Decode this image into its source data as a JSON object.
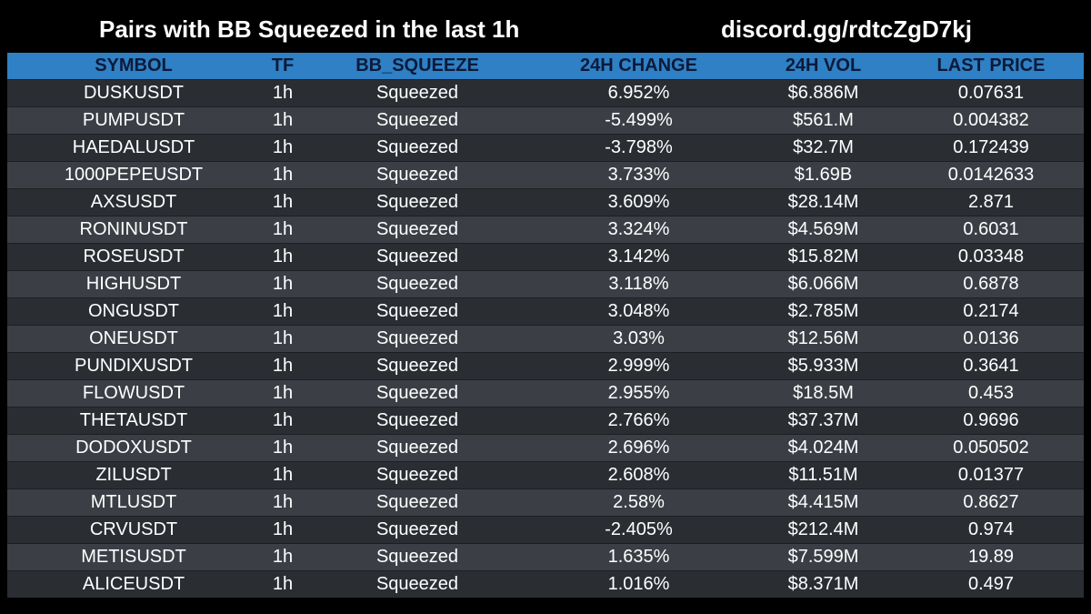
{
  "header": {
    "title": "Pairs with BB Squeezed in the last 1h",
    "discord": "discord.gg/rdtcZgD7kj"
  },
  "table": {
    "columns": [
      "SYMBOL",
      "TF",
      "BB_SQUEEZE",
      "24H CHANGE",
      "24H VOL",
      "LAST PRICE"
    ],
    "rows": [
      [
        "DUSKUSDT",
        "1h",
        "Squeezed",
        "6.952%",
        "$6.886M",
        "0.07631"
      ],
      [
        "PUMPUSDT",
        "1h",
        "Squeezed",
        "-5.499%",
        "$561.M",
        "0.004382"
      ],
      [
        "HAEDALUSDT",
        "1h",
        "Squeezed",
        "-3.798%",
        "$32.7M",
        "0.172439"
      ],
      [
        "1000PEPEUSDT",
        "1h",
        "Squeezed",
        "3.733%",
        "$1.69B",
        "0.0142633"
      ],
      [
        "AXSUSDT",
        "1h",
        "Squeezed",
        "3.609%",
        "$28.14M",
        "2.871"
      ],
      [
        "RONINUSDT",
        "1h",
        "Squeezed",
        "3.324%",
        "$4.569M",
        "0.6031"
      ],
      [
        "ROSEUSDT",
        "1h",
        "Squeezed",
        "3.142%",
        "$15.82M",
        "0.03348"
      ],
      [
        "HIGHUSDT",
        "1h",
        "Squeezed",
        "3.118%",
        "$6.066M",
        "0.6878"
      ],
      [
        "ONGUSDT",
        "1h",
        "Squeezed",
        "3.048%",
        "$2.785M",
        "0.2174"
      ],
      [
        "ONEUSDT",
        "1h",
        "Squeezed",
        "3.03%",
        "$12.56M",
        "0.0136"
      ],
      [
        "PUNDIXUSDT",
        "1h",
        "Squeezed",
        "2.999%",
        "$5.933M",
        "0.3641"
      ],
      [
        "FLOWUSDT",
        "1h",
        "Squeezed",
        "2.955%",
        "$18.5M",
        "0.453"
      ],
      [
        "THETAUSDT",
        "1h",
        "Squeezed",
        "2.766%",
        "$37.37M",
        "0.9696"
      ],
      [
        "DODOXUSDT",
        "1h",
        "Squeezed",
        "2.696%",
        "$4.024M",
        "0.050502"
      ],
      [
        "ZILUSDT",
        "1h",
        "Squeezed",
        "2.608%",
        "$11.51M",
        "0.01377"
      ],
      [
        "MTLUSDT",
        "1h",
        "Squeezed",
        "2.58%",
        "$4.415M",
        "0.8627"
      ],
      [
        "CRVUSDT",
        "1h",
        "Squeezed",
        "-2.405%",
        "$212.4M",
        "0.974"
      ],
      [
        "METISUSDT",
        "1h",
        "Squeezed",
        "1.635%",
        "$7.599M",
        "19.89"
      ],
      [
        "ALICEUSDT",
        "1h",
        "Squeezed",
        "1.016%",
        "$8.371M",
        "0.497"
      ]
    ]
  },
  "colors": {
    "background": "#000000",
    "header_bar": "#2f80c4",
    "header_text": "#0c1a3a",
    "row_odd": "#2a2e33",
    "row_even": "#3b3f45",
    "text": "#ffffff"
  }
}
